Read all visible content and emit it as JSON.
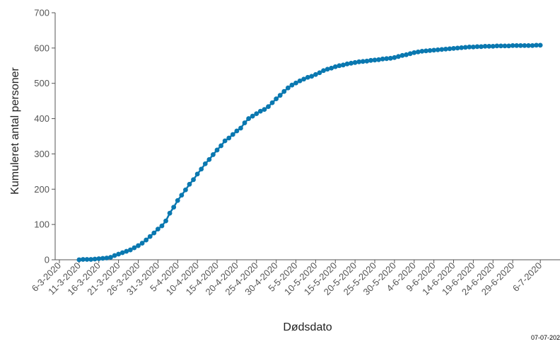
{
  "chart_data": {
    "type": "line",
    "xlabel": "Dødsdato",
    "ylabel": "Kumuleret antal personer",
    "ylim": [
      0,
      700
    ],
    "yticks": [
      0,
      100,
      200,
      300,
      400,
      500,
      600,
      700
    ],
    "xlim": [
      "6-3-2020",
      "6-7-2020"
    ],
    "xtick_labels": [
      "6-3-2020",
      "11-3-2020",
      "16-3-2020",
      "21-3-2020",
      "26-3-2020",
      "31-3-2020",
      "5-4-2020",
      "10-4-2020",
      "15-4-2020",
      "20-4-2020",
      "25-4-2020",
      "30-4-2020",
      "5-5-2020",
      "10-5-2020",
      "15-5-2020",
      "20-5-2020",
      "25-5-2020",
      "30-5-2020",
      "4-6-2020",
      "9-6-2020",
      "14-6-2020",
      "19-6-2020",
      "24-6-2020",
      "29-6-2020",
      "6-7-2020"
    ],
    "grid": false,
    "markers": true,
    "series": [
      {
        "color": "#0a78b0",
        "start_date": "11-3-2020",
        "values": [
          0,
          1,
          1,
          1,
          2,
          3,
          4,
          5,
          7,
          12,
          16,
          20,
          24,
          28,
          34,
          40,
          47,
          56,
          66,
          76,
          87,
          96,
          110,
          132,
          149,
          168,
          183,
          198,
          214,
          227,
          243,
          257,
          272,
          284,
          298,
          311,
          323,
          337,
          345,
          355,
          365,
          373,
          388,
          400,
          407,
          414,
          421,
          426,
          434,
          445,
          456,
          466,
          477,
          487,
          495,
          501,
          507,
          512,
          517,
          520,
          525,
          530,
          536,
          540,
          543,
          547,
          550,
          552,
          555,
          557,
          559,
          561,
          562,
          563,
          565,
          566,
          567,
          569,
          570,
          571,
          573,
          576,
          579,
          581,
          584,
          587,
          589,
          591,
          592,
          593,
          594,
          595,
          596,
          597,
          598,
          599,
          600,
          601,
          602,
          603,
          603,
          604,
          604,
          605,
          605,
          605,
          606,
          606,
          606,
          606,
          607,
          607,
          607,
          607,
          607,
          607,
          608,
          608
        ]
      }
    ]
  },
  "footnote": "07-07-202"
}
